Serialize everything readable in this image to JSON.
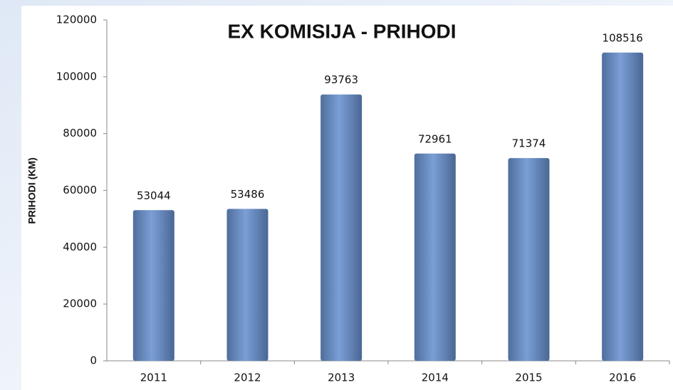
{
  "chart_data": {
    "type": "bar",
    "title": "EX KOMISIJA - PRIHODI",
    "y_label": "PRIHODI (KM)",
    "categories": [
      "2011",
      "2012",
      "2013",
      "2014",
      "2015",
      "2016"
    ],
    "values": [
      53044,
      53486,
      93763,
      72961,
      71374,
      108516
    ],
    "color": "#7a9fd6",
    "ylim": [
      0,
      120000
    ],
    "yticks": [
      0,
      20000,
      40000,
      60000,
      80000,
      100000,
      120000
    ],
    "grid": false
  }
}
